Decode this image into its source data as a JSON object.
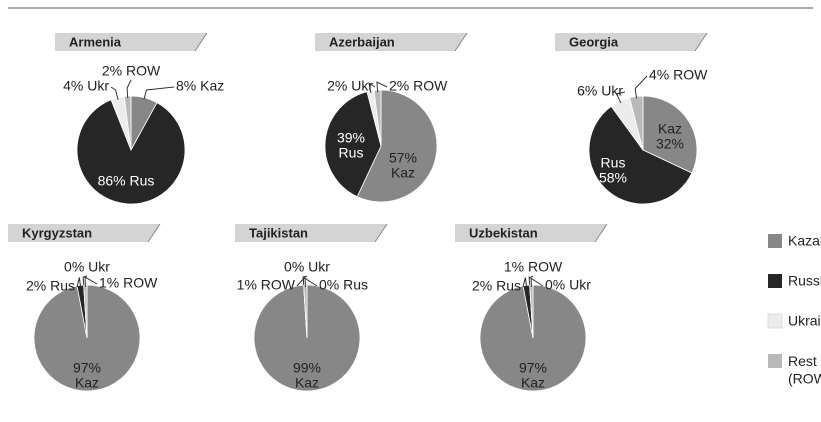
{
  "legend": [
    {
      "name": "Kazakhstan (Kaz)",
      "color": "#878787"
    },
    {
      "name": "Russia (Rus)",
      "color": "#262626"
    },
    {
      "name": "Ukraine (Ukr)",
      "color": "#ececec"
    },
    {
      "name": "Rest of the World (ROW)",
      "color": "#b9b9b9"
    }
  ],
  "chart_data": [
    {
      "type": "pie",
      "title": "Armenia",
      "values": [
        8,
        86,
        4,
        2
      ],
      "value_labels": [
        "8% Kaz",
        "86% Rus",
        "4% Ukr",
        "2% ROW"
      ]
    },
    {
      "type": "pie",
      "title": "Azerbaijan",
      "values": [
        57,
        39,
        2,
        2
      ],
      "value_labels": [
        "57% Kaz",
        "39% Rus",
        "2% Ukr",
        "2% ROW"
      ]
    },
    {
      "type": "pie",
      "title": "Georgia",
      "values": [
        32,
        58,
        6,
        4
      ],
      "value_labels": [
        "Kaz 32%",
        "Rus 58%",
        "6% Ukr",
        "4% ROW"
      ]
    },
    {
      "type": "pie",
      "title": "Kyrgyzstan",
      "values": [
        97,
        2,
        0,
        1
      ],
      "value_labels": [
        "97% Kaz",
        "2% Rus",
        "0% Ukr",
        "1% ROW"
      ]
    },
    {
      "type": "pie",
      "title": "Tajikistan",
      "values": [
        99,
        0,
        0,
        1
      ],
      "value_labels": [
        "99% Kaz",
        "0% Rus",
        "0% Ukr",
        "1% ROW"
      ]
    },
    {
      "type": "pie",
      "title": "Uzbekistan",
      "values": [
        97,
        2,
        0,
        1
      ],
      "value_labels": [
        "97% Kaz",
        "2% Rus",
        "0% Ukr",
        "1% ROW"
      ]
    }
  ]
}
